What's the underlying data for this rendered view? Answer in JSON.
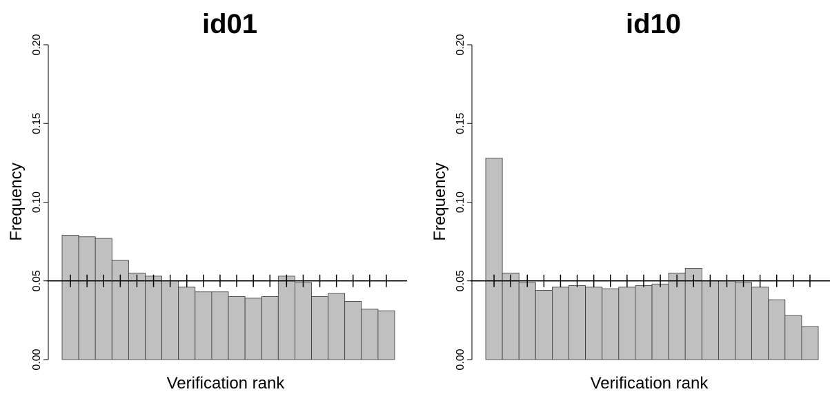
{
  "chart_data": [
    {
      "type": "bar",
      "title": "id01",
      "x_label": "Verification rank",
      "y_label": "Frequency",
      "categories": [
        null,
        null,
        null,
        null,
        null,
        null,
        null,
        null,
        null,
        null,
        null,
        null,
        null,
        null,
        null,
        null,
        null,
        null,
        null,
        null
      ],
      "values": [
        0.079,
        0.078,
        0.077,
        0.063,
        0.055,
        0.053,
        0.05,
        0.046,
        0.043,
        0.043,
        0.04,
        0.039,
        0.04,
        0.053,
        0.049,
        0.04,
        0.042,
        0.037,
        0.032,
        0.031
      ],
      "color": "#c0c0c0",
      "ylim": [
        0,
        0.2
      ],
      "yticks": [
        {
          "value": 0,
          "label": "0.00"
        },
        0.05,
        {
          "value": 0.1,
          "label": "0.10"
        },
        0.15,
        {
          "value": 0.2,
          "label": "0.20"
        }
      ],
      "reference_line": 0.05
    },
    {
      "type": "bar",
      "title": "id10",
      "x_label": "Verification rank",
      "y_label": "Frequency",
      "categories": [
        null,
        null,
        null,
        null,
        null,
        null,
        null,
        null,
        null,
        null,
        null,
        null,
        null,
        null,
        null,
        null,
        null,
        null,
        null,
        null
      ],
      "values": [
        0.128,
        0.055,
        0.049,
        0.044,
        0.046,
        0.047,
        0.046,
        0.045,
        0.046,
        0.047,
        0.048,
        0.055,
        0.058,
        0.05,
        0.05,
        0.049,
        0.046,
        0.038,
        0.028,
        0.021
      ],
      "color": "#c0c0c0",
      "ylim": [
        0,
        0.2
      ],
      "yticks": [
        {
          "value": 0,
          "label": "0.00"
        },
        0.05,
        {
          "value": 0.1,
          "label": "0.10"
        },
        0.15,
        {
          "value": 0.2,
          "label": "0.20"
        }
      ],
      "reference_line": 0.05
    }
  ]
}
